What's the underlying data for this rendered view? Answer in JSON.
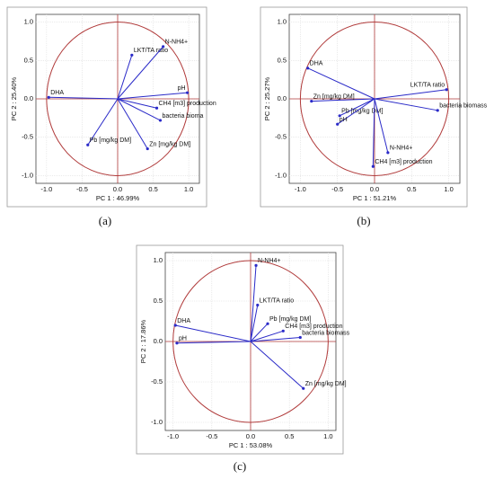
{
  "chart_data": [
    {
      "type": "vector",
      "caption": "(a)",
      "xlabel": "PC 1 : 46.99%",
      "ylabel": "PC 2 : 25.40%",
      "labels": [
        "DHA",
        "LKT/TA ratio",
        "N-NH4+",
        "pH",
        "CH4 [m3] production",
        "bacteria bioma",
        "Pb [mg/kg DM]",
        "Zn [mg/kg DM]"
      ],
      "x": [
        -0.97,
        0.2,
        0.64,
        0.98,
        0.55,
        0.6,
        -0.42,
        0.42
      ],
      "y": [
        0.02,
        0.57,
        0.68,
        0.08,
        -0.12,
        -0.28,
        -0.6,
        -0.65
      ],
      "xlim": [
        -1.15,
        1.15
      ],
      "ylim": [
        -1.1,
        1.1
      ],
      "xticks": [
        {
          "value": -1,
          "label": "-1.0"
        },
        -0.5,
        {
          "value": 0,
          "label": "0.0"
        },
        0.5,
        {
          "value": 1,
          "label": "1.0"
        }
      ],
      "yticks": [
        {
          "value": -1,
          "label": "-1.0"
        },
        -0.5,
        {
          "value": 0,
          "label": "0.0"
        },
        0.5,
        {
          "value": 1,
          "label": "1.0"
        }
      ],
      "grid": true,
      "circle_color": "#b03a3a",
      "vector_color": "#2a2ac8"
    },
    {
      "type": "vector",
      "caption": "(b)",
      "xlabel": "PC 1 : 51.21%",
      "ylabel": "PC 2 : 25.27%",
      "labels": [
        "DHA",
        "LKT/TA ratio",
        "Zn [mg/kg DM]",
        "Pb [mg/kg DM]",
        "pH",
        "bacteria biomass",
        "N-NH4+",
        "CH4 [m3] production"
      ],
      "x": [
        -0.9,
        0.97,
        -0.85,
        -0.47,
        -0.5,
        0.85,
        0.18,
        -0.02
      ],
      "y": [
        0.4,
        0.12,
        -0.03,
        -0.22,
        -0.33,
        -0.15,
        -0.7,
        -0.88
      ],
      "xlim": [
        -1.15,
        1.15
      ],
      "ylim": [
        -1.1,
        1.1
      ],
      "xticks": [
        {
          "value": -1,
          "label": "-1.0"
        },
        -0.5,
        {
          "value": 0,
          "label": "0.0"
        },
        0.5,
        {
          "value": 1,
          "label": "1.0"
        }
      ],
      "yticks": [
        {
          "value": -1,
          "label": "-1.0"
        },
        -0.5,
        {
          "value": 0,
          "label": "0.0"
        },
        0.5,
        {
          "value": 1,
          "label": "1.0"
        }
      ],
      "grid": true,
      "circle_color": "#b03a3a",
      "vector_color": "#2a2ac8"
    },
    {
      "type": "vector",
      "caption": "(c)",
      "xlabel": "PC 1 : 53.08%",
      "ylabel": "PC 2 : 17.86%",
      "labels": [
        "N-NH4+",
        "LKT/TA ratio",
        "Pb [mg/kg DM]",
        "CH4 [m3] production",
        "bacteria biomass",
        "DHA",
        "pH",
        "Zn [mg/kg DM]"
      ],
      "x": [
        0.07,
        0.09,
        0.22,
        0.42,
        0.64,
        -0.97,
        -0.95,
        0.68
      ],
      "y": [
        0.94,
        0.45,
        0.22,
        0.13,
        0.05,
        0.2,
        -0.02,
        -0.58
      ],
      "xlim": [
        -1.1,
        1.1
      ],
      "ylim": [
        -1.1,
        1.1
      ],
      "xticks": [
        {
          "value": -1,
          "label": "-1.0"
        },
        -0.5,
        {
          "value": 0,
          "label": "0.0"
        },
        0.5,
        {
          "value": 1,
          "label": "1.0"
        }
      ],
      "yticks": [
        {
          "value": -1,
          "label": "-1.0"
        },
        -0.5,
        {
          "value": 0,
          "label": "0.0"
        },
        0.5,
        {
          "value": 1,
          "label": "1.0"
        }
      ],
      "grid": true,
      "circle_color": "#b03a3a",
      "vector_color": "#2a2ac8"
    }
  ]
}
